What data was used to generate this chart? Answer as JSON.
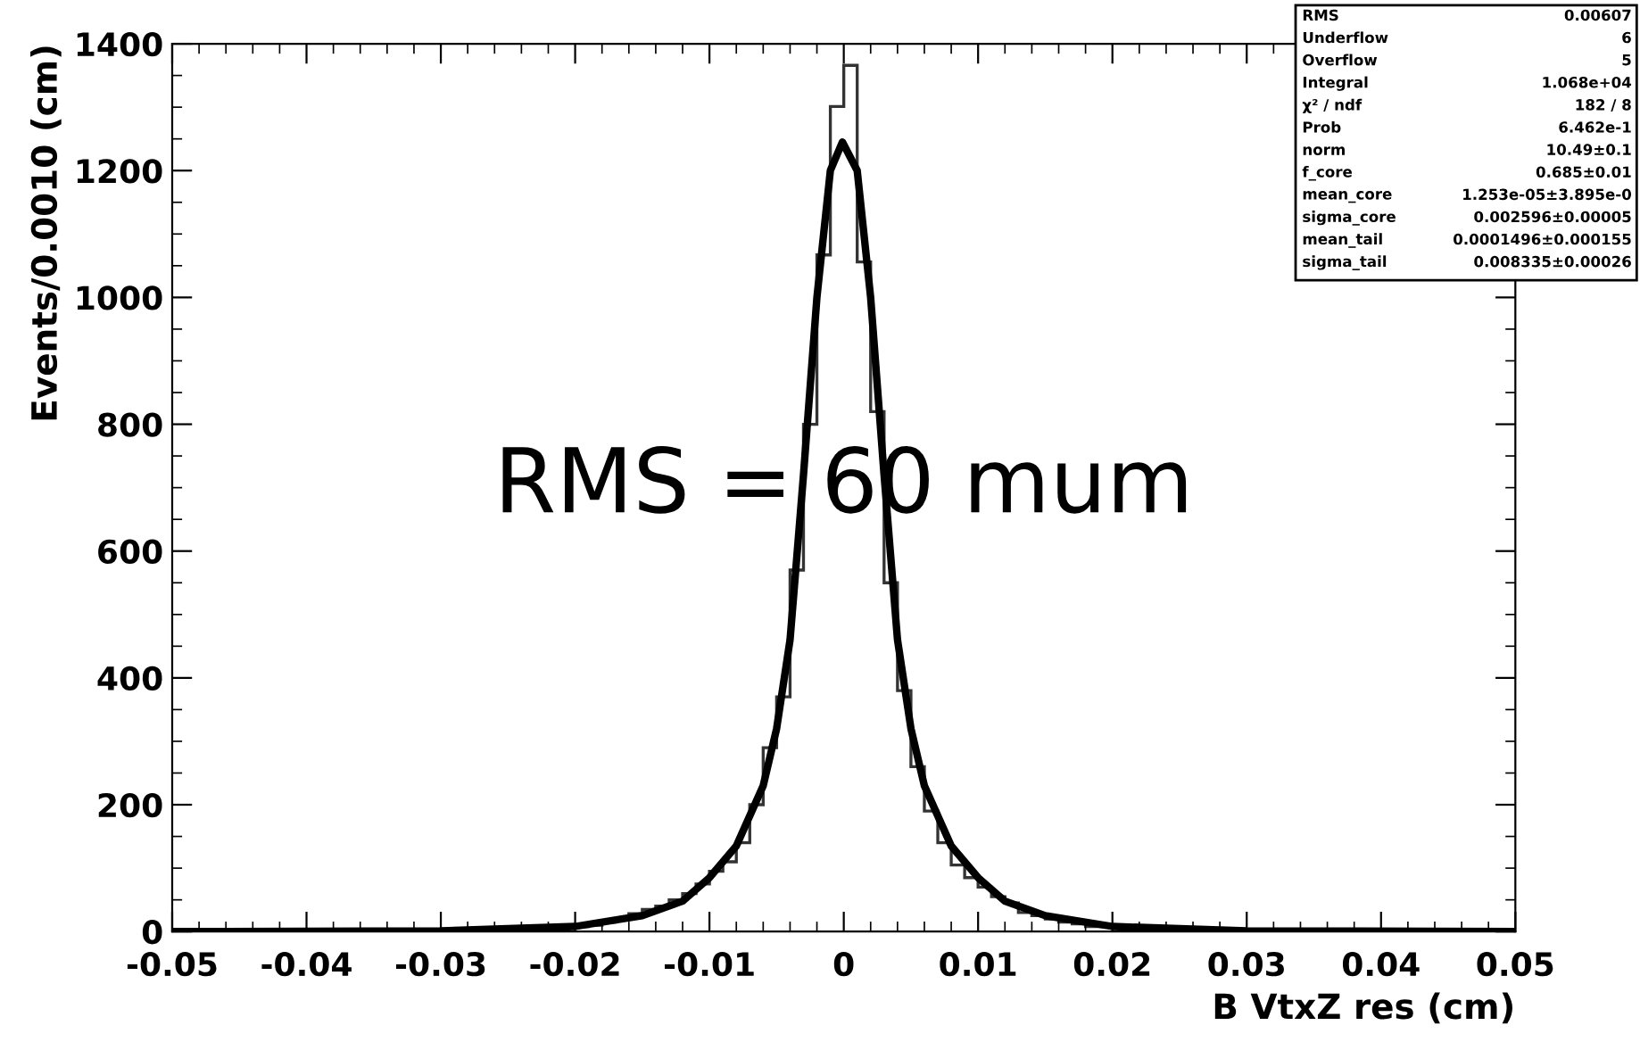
{
  "chart_data": {
    "type": "histogram",
    "xlabel": "B VtxZ res (cm)",
    "ylabel": "Events/0.0010 (cm)",
    "bins": [
      -0.05,
      -0.049,
      -0.048,
      -0.047,
      -0.046,
      -0.045,
      -0.044,
      -0.043,
      -0.042,
      -0.041,
      -0.04,
      -0.039,
      -0.038,
      -0.037,
      -0.036,
      -0.035,
      -0.034,
      -0.033,
      -0.032,
      -0.031,
      -0.03,
      -0.029,
      -0.028,
      -0.027,
      -0.026,
      -0.025,
      -0.024,
      -0.023,
      -0.022,
      -0.021,
      -0.02,
      -0.019,
      -0.018,
      -0.017,
      -0.016,
      -0.015,
      -0.014,
      -0.013,
      -0.012,
      -0.011,
      -0.01,
      -0.009,
      -0.008,
      -0.007,
      -0.006,
      -0.005,
      -0.004,
      -0.003,
      -0.002,
      -0.001,
      0,
      0.001,
      0.002,
      0.003,
      0.004,
      0.005,
      0.006,
      0.007,
      0.008,
      0.009,
      0.01,
      0.011,
      0.012,
      0.013,
      0.014,
      0.015,
      0.016,
      0.017,
      0.018,
      0.019,
      0.02,
      0.021,
      0.022,
      0.023,
      0.024,
      0.025,
      0.026,
      0.027,
      0.028,
      0.029,
      0.03,
      0.031,
      0.032,
      0.033,
      0.034,
      0.035,
      0.036,
      0.037,
      0.038,
      0.039,
      0.04,
      0.041,
      0.042,
      0.043,
      0.044,
      0.045,
      0.046,
      0.047,
      0.048,
      0.049,
      0.05
    ],
    "series": [
      {
        "color": "#333333",
        "values": [
          0,
          0,
          0,
          0,
          0,
          0,
          0,
          0,
          0,
          0,
          0,
          0,
          0,
          0,
          0,
          0,
          0,
          0,
          0,
          0,
          1,
          1,
          1,
          2,
          2,
          3,
          3,
          4,
          5,
          6,
          8,
          10,
          15,
          20,
          28,
          35,
          40,
          50,
          60,
          75,
          95,
          110,
          140,
          200,
          290,
          370,
          570,
          800,
          1067,
          1301,
          1366,
          1056,
          820,
          550,
          380,
          260,
          190,
          140,
          105,
          85,
          70,
          55,
          45,
          30,
          25,
          20,
          15,
          12,
          8,
          8,
          5,
          4,
          3,
          2,
          2,
          2,
          1,
          1,
          1,
          1,
          0,
          0,
          0,
          0,
          0,
          0,
          0,
          0,
          0,
          0,
          0,
          0,
          0,
          0,
          0,
          0,
          0,
          0,
          0,
          0
        ]
      },
      {
        "type": "line",
        "color": "#000000",
        "x": [
          -0.05,
          -0.03,
          -0.02,
          -0.015,
          -0.012,
          -0.01,
          -0.008,
          -0.006,
          -0.005,
          -0.004,
          -0.003,
          -0.002,
          -0.001,
          -0.0001,
          0.001,
          0.002,
          0.003,
          0.004,
          0.005,
          0.006,
          0.008,
          0.01,
          0.012,
          0.015,
          0.02,
          0.03,
          0.05
        ],
        "values": [
          0,
          1,
          8,
          25,
          48,
          85,
          135,
          230,
          320,
          460,
          720,
          1000,
          1200,
          1245,
          1200,
          1000,
          720,
          460,
          320,
          230,
          135,
          85,
          48,
          25,
          8,
          1,
          0
        ]
      }
    ],
    "xlim": [
      -0.05,
      0.05
    ],
    "xticks": [
      -0.05,
      -0.04,
      -0.03,
      -0.02,
      -0.01,
      0,
      0.01,
      0.02,
      0.03,
      0.04,
      0.05
    ],
    "ylim": [
      0,
      1400
    ],
    "yticks": [
      0,
      200,
      400,
      600,
      800,
      1000,
      1200,
      1400
    ],
    "grid": false,
    "legend": false,
    "annotations": [
      "RMS = 60 mum",
      "RMS",
      "0.00607",
      "Underflow",
      "6",
      "Overflow",
      "5",
      "Integral",
      "1.068e+04",
      "χ² / ndf",
      "182 / 8",
      "Prob",
      "6.462e-1",
      "norm",
      "10.49±0.1",
      "f_core",
      "0.685±0.01",
      "mean_core",
      "1.253e-05±3.895e-0",
      "sigma_core",
      "0.002596±0.00005",
      "mean_tail",
      "0.0001496±0.000155",
      "sigma_tail",
      "0.008335±0.00026"
    ]
  }
}
